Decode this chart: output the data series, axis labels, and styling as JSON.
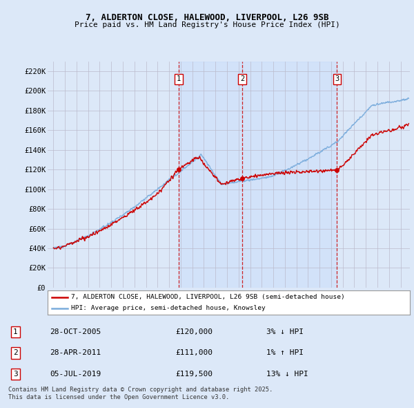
{
  "title_line1": "7, ALDERTON CLOSE, HALEWOOD, LIVERPOOL, L26 9SB",
  "title_line2": "Price paid vs. HM Land Registry's House Price Index (HPI)",
  "ylim": [
    0,
    230000
  ],
  "yticks": [
    0,
    20000,
    40000,
    60000,
    80000,
    100000,
    120000,
    140000,
    160000,
    180000,
    200000,
    220000
  ],
  "ytick_labels": [
    "£0",
    "£20K",
    "£40K",
    "£60K",
    "£80K",
    "£100K",
    "£120K",
    "£140K",
    "£160K",
    "£180K",
    "£200K",
    "£220K"
  ],
  "bg_color": "#dce8f8",
  "plot_bg_color": "#dce8f8",
  "grid_color": "#bbbbcc",
  "red_line_color": "#cc0000",
  "blue_line_color": "#7aacdc",
  "transaction_line_color": "#cc0000",
  "dot_color": "#cc0000",
  "transactions": [
    {
      "num": 1,
      "date": "28-OCT-2005",
      "price": 120000,
      "hpi_diff": "3%",
      "direction": "↓",
      "x_year": 2005.82
    },
    {
      "num": 2,
      "date": "28-APR-2011",
      "price": 111000,
      "hpi_diff": "1%",
      "direction": "↑",
      "x_year": 2011.32
    },
    {
      "num": 3,
      "date": "05-JUL-2019",
      "price": 119500,
      "hpi_diff": "13%",
      "direction": "↓",
      "x_year": 2019.51
    }
  ],
  "legend_labels": [
    "7, ALDERTON CLOSE, HALEWOOD, LIVERPOOL, L26 9SB (semi-detached house)",
    "HPI: Average price, semi-detached house, Knowsley"
  ],
  "footer": "Contains HM Land Registry data © Crown copyright and database right 2025.\nThis data is licensed under the Open Government Licence v3.0.",
  "xmin": 1994.5,
  "xmax": 2025.8
}
